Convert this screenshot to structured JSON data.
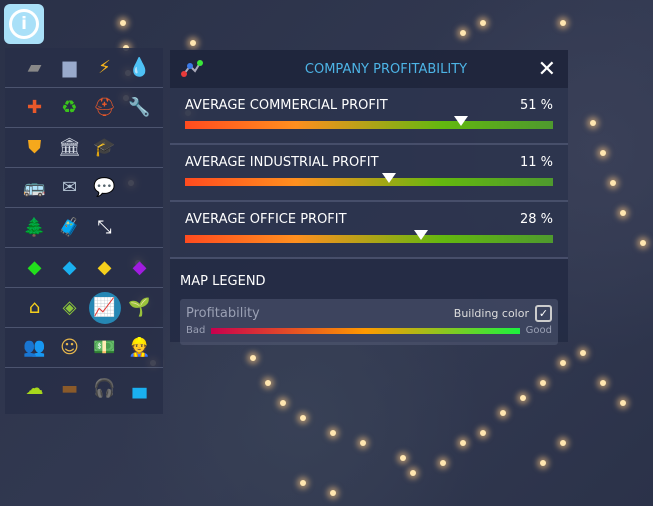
{
  "sidebar": {
    "rows": [
      [
        {
          "name": "road-icon",
          "g": "▰",
          "c": "#888"
        },
        {
          "name": "bus-icon",
          "g": "▆",
          "c": "#9ac"
        },
        {
          "name": "lightning-icon",
          "g": "⚡",
          "c": "#f5b41c"
        },
        {
          "name": "water-drop-icon",
          "g": "💧",
          "c": "#2aa0e8"
        }
      ],
      [
        {
          "name": "healthcare-icon",
          "g": "✚",
          "c": "#e8582a"
        },
        {
          "name": "recycle-icon",
          "g": "♻",
          "c": "#3bc41c"
        },
        {
          "name": "fire-helmet-icon",
          "g": "⛑",
          "c": "#e8582a"
        },
        {
          "name": "wrench-icon",
          "g": "🔧",
          "c": "#aab"
        }
      ],
      [
        {
          "name": "police-badge-icon",
          "g": "⛊",
          "c": "#f5a81c"
        },
        {
          "name": "city-hall-icon",
          "g": "🏛",
          "c": "#cfd5e0"
        },
        {
          "name": "graduation-cap-icon",
          "g": "🎓",
          "c": "#8ea4b8"
        }
      ],
      [
        {
          "name": "bus-transit-icon",
          "g": "🚌",
          "c": "#4bb82a"
        },
        {
          "name": "mail-icon",
          "g": "✉",
          "c": "#b8c8d8"
        },
        {
          "name": "chat-icon",
          "g": "💬",
          "c": "#fff"
        }
      ],
      [
        {
          "name": "park-icon",
          "g": "🌲",
          "c": "#3c9a2a"
        },
        {
          "name": "luggage-icon",
          "g": "🧳",
          "c": "#3cbcd0"
        },
        {
          "name": "resize-arrow-icon",
          "g": "⤡",
          "c": "#fff"
        }
      ],
      [
        {
          "name": "residential-zone-icon",
          "g": "◆",
          "c": "#22e01c"
        },
        {
          "name": "commercial-zone-icon",
          "g": "◆",
          "c": "#1ab0f0"
        },
        {
          "name": "industrial-zone-icon",
          "g": "◆",
          "c": "#f5d01c"
        },
        {
          "name": "office-zone-icon",
          "g": "◆",
          "c": "#a01ce0"
        }
      ],
      [
        {
          "name": "house-icon",
          "g": "⌂",
          "c": "#f5d01c"
        },
        {
          "name": "land-value-icon",
          "g": "◈",
          "c": "#8ac43c"
        },
        {
          "name": "profitability-icon",
          "g": "📈",
          "c": "#fff",
          "sel": true
        },
        {
          "name": "sprout-icon",
          "g": "🌱",
          "c": "#8ac41c"
        }
      ],
      [
        {
          "name": "population-icon",
          "g": "👥",
          "c": "#a8d8f0"
        },
        {
          "name": "happiness-icon",
          "g": "☺",
          "c": "#e8b84c"
        },
        {
          "name": "money-icon",
          "g": "💵",
          "c": "#8ad84c"
        },
        {
          "name": "worker-icon",
          "g": "👷",
          "c": "#e8a82a"
        }
      ],
      [
        {
          "name": "pollution-icon",
          "g": "☁",
          "c": "#a8d81c"
        },
        {
          "name": "ground-icon",
          "g": "▬",
          "c": "#8a5a2a"
        },
        {
          "name": "noise-headphones-icon",
          "g": "🎧",
          "c": "#f5a81c"
        },
        {
          "name": "water-level-icon",
          "g": "▄",
          "c": "#1ab0f0"
        }
      ]
    ]
  },
  "panel": {
    "title": "COMPANY PROFITABILITY",
    "stats": [
      {
        "label": "AVERAGE COMMERCIAL PROFIT",
        "value": "51 %",
        "marker": 0.75
      },
      {
        "label": "AVERAGE INDUSTRIAL PROFIT",
        "value": "11 %",
        "marker": 0.555
      },
      {
        "label": "AVERAGE OFFICE PROFIT",
        "value": "28 %",
        "marker": 0.64
      }
    ],
    "legend": {
      "title": "MAP LEGEND",
      "name": "Profitability",
      "toggle_label": "Building color",
      "checked": true,
      "low": "Bad",
      "high": "Good"
    }
  }
}
